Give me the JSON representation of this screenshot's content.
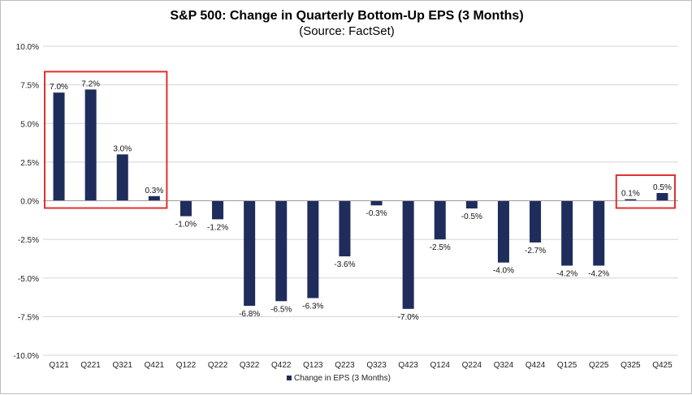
{
  "chart_data": {
    "type": "bar",
    "title": "S&P 500: Change in Quarterly Bottom-Up EPS (3 Months)",
    "subtitle": "(Source: FactSet)",
    "categories": [
      "Q121",
      "Q221",
      "Q321",
      "Q421",
      "Q122",
      "Q222",
      "Q322",
      "Q422",
      "Q123",
      "Q223",
      "Q323",
      "Q423",
      "Q124",
      "Q224",
      "Q324",
      "Q424",
      "Q125",
      "Q225",
      "Q325",
      "Q425"
    ],
    "series": [
      {
        "name": "Change in EPS (3 Months)",
        "values": [
          7.0,
          7.2,
          3.0,
          0.3,
          -1.0,
          -1.2,
          -6.8,
          -6.5,
          -6.3,
          -3.6,
          -0.3,
          -7.0,
          -2.5,
          -0.5,
          -4.0,
          -2.7,
          -4.2,
          -4.2,
          0.1,
          0.5
        ],
        "labels": [
          "7.0%",
          "7.2%",
          "3.0%",
          "0.3%",
          "-1.0%",
          "-1.2%",
          "-6.8%",
          "-6.5%",
          "-6.3%",
          "-3.6%",
          "-0.3%",
          "-7.0%",
          "-2.5%",
          "-0.5%",
          "-4.0%",
          "-2.7%",
          "-4.2%",
          "-4.2%",
          "0.1%",
          "0.5%"
        ]
      }
    ],
    "ylim": [
      -10.0,
      10.0
    ],
    "yticks": [
      10.0,
      7.5,
      5.0,
      2.5,
      0.0,
      -2.5,
      -5.0,
      -7.5,
      -10.0
    ],
    "ytick_labels": [
      "10.0%",
      "7.5%",
      "5.0%",
      "2.5%",
      "0.0%",
      "-2.5%",
      "-5.0%",
      "-7.5%",
      "-10.0%"
    ],
    "xlabel": "",
    "ylabel": "",
    "grid": true,
    "legend_position": "bottom-center",
    "bar_color": "#1f2d5c",
    "highlight_color": "#e03030",
    "highlight_groups": [
      [
        "Q121",
        "Q421"
      ],
      [
        "Q325",
        "Q425"
      ]
    ]
  }
}
